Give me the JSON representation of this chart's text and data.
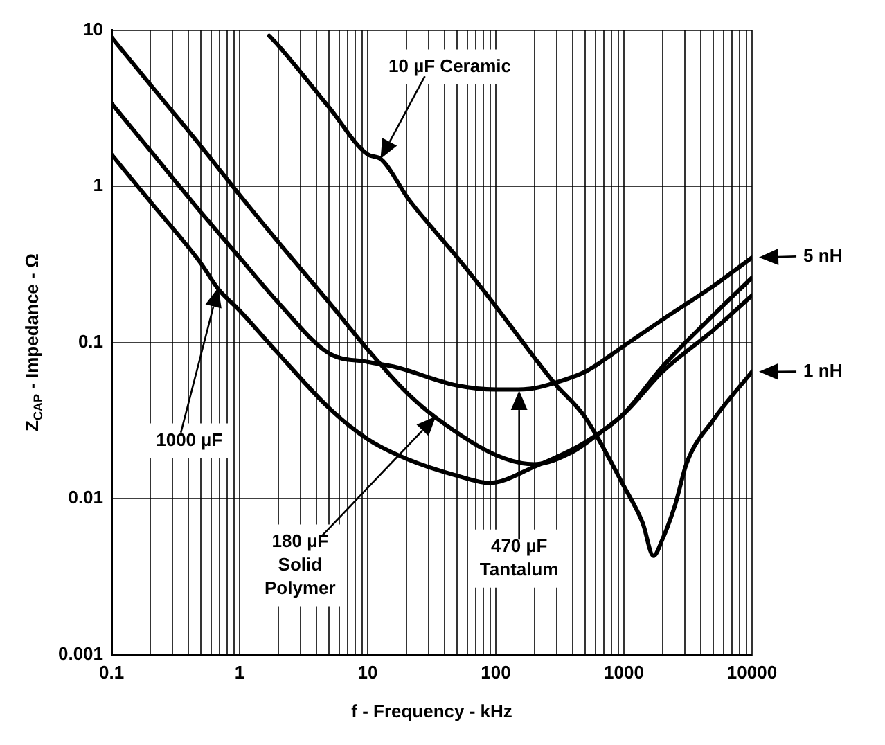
{
  "chart_data": {
    "type": "line",
    "xlabel": "f - Frequency - kHz",
    "ylabel": "Z$_{CAP}$ - Impedance - Ω",
    "log": "xy",
    "grid": true,
    "legend": false,
    "marker": "none",
    "line_style": "solid",
    "xlim": [
      0.1,
      10000
    ],
    "ylim": [
      0.001,
      10
    ],
    "xticks": [
      0.1,
      {
        "value": 0.2,
        "label": null
      },
      {
        "value": 0.3,
        "label": null
      },
      {
        "value": 0.4,
        "label": null
      },
      {
        "value": 0.5,
        "label": null
      },
      {
        "value": 0.6,
        "label": null
      },
      {
        "value": 0.7,
        "label": null
      },
      {
        "value": 0.8,
        "label": null
      },
      {
        "value": 0.9,
        "label": null
      },
      1,
      {
        "value": 2,
        "label": null
      },
      {
        "value": 3,
        "label": null
      },
      {
        "value": 4,
        "label": null
      },
      {
        "value": 5,
        "label": null
      },
      {
        "value": 6,
        "label": null
      },
      {
        "value": 7,
        "label": null
      },
      {
        "value": 8,
        "label": null
      },
      {
        "value": 9,
        "label": null
      },
      10,
      {
        "value": 20,
        "label": null
      },
      {
        "value": 30,
        "label": null
      },
      {
        "value": 40,
        "label": null
      },
      {
        "value": 50,
        "label": null
      },
      {
        "value": 60,
        "label": null
      },
      {
        "value": 70,
        "label": null
      },
      {
        "value": 80,
        "label": null
      },
      {
        "value": 90,
        "label": null
      },
      100,
      {
        "value": 200,
        "label": null
      },
      {
        "value": 300,
        "label": null
      },
      {
        "value": 400,
        "label": null
      },
      {
        "value": 500,
        "label": null
      },
      {
        "value": 600,
        "label": null
      },
      {
        "value": 700,
        "label": null
      },
      {
        "value": 800,
        "label": null
      },
      {
        "value": 900,
        "label": null
      },
      1000,
      {
        "value": 2000,
        "label": null
      },
      {
        "value": 3000,
        "label": null
      },
      {
        "value": 4000,
        "label": null
      },
      {
        "value": 5000,
        "label": null
      },
      {
        "value": 6000,
        "label": null
      },
      {
        "value": 7000,
        "label": null
      },
      {
        "value": 8000,
        "label": null
      },
      {
        "value": 9000,
        "label": null
      },
      10000
    ],
    "yticks": [
      0.001,
      0.01,
      0.1,
      1,
      10
    ],
    "series": [
      {
        "color": "#000000",
        "x": [
          0.1,
          0.2,
          0.5,
          1,
          2,
          5,
          10,
          20,
          34,
          100,
          200,
          400,
          575,
          1000,
          2000,
          5000,
          10000
        ],
        "values": [
          9,
          4.5,
          1.8,
          0.88,
          0.44,
          0.18,
          0.09,
          0.048,
          0.033,
          0.019,
          0.0166,
          0.02,
          0.0245,
          0.035,
          0.07,
          0.15,
          0.26
        ]
      },
      {
        "color": "#000000",
        "x": [
          0.1,
          0.2,
          0.5,
          1,
          2,
          5,
          10,
          16,
          50,
          100,
          150,
          200,
          286,
          500,
          1000,
          2000,
          5000,
          10000
        ],
        "values": [
          3.4,
          1.7,
          0.68,
          0.35,
          0.18,
          0.085,
          0.075,
          0.07,
          0.053,
          0.05,
          0.05,
          0.051,
          0.055,
          0.065,
          0.095,
          0.14,
          0.23,
          0.35
        ]
      },
      {
        "color": "#000000",
        "x": [
          0.1,
          0.2,
          0.5,
          0.68,
          1,
          2,
          5,
          10,
          20,
          50,
          89,
          200,
          500,
          1000,
          2000,
          5000,
          10000
        ],
        "values": [
          1.6,
          0.8,
          0.32,
          0.22,
          0.16,
          0.085,
          0.038,
          0.024,
          0.018,
          0.014,
          0.0126,
          0.016,
          0.023,
          0.035,
          0.065,
          0.12,
          0.2
        ]
      },
      {
        "color": "#000000",
        "x": [
          1.7,
          2,
          5,
          10,
          12.6,
          21,
          50,
          100,
          200,
          286,
          500,
          1000,
          1400,
          1700,
          2000,
          2500,
          3100,
          5000,
          10000
        ],
        "values": [
          9.2,
          8,
          3.2,
          1.6,
          1.5,
          0.82,
          0.35,
          0.17,
          0.08,
          0.055,
          0.033,
          0.012,
          0.007,
          0.0043,
          0.0055,
          0.009,
          0.017,
          0.032,
          0.065
        ]
      }
    ],
    "annotations": [
      "10 µF Ceramic",
      "1000 µF",
      "180 µF\nSolid\nPolymer",
      "470 µF\nTantalum",
      {
        "text": "5 nH",
        "x": 10000,
        "y": 0.35
      },
      {
        "text": "1 nH",
        "x": 10000,
        "y": 0.065
      }
    ]
  }
}
